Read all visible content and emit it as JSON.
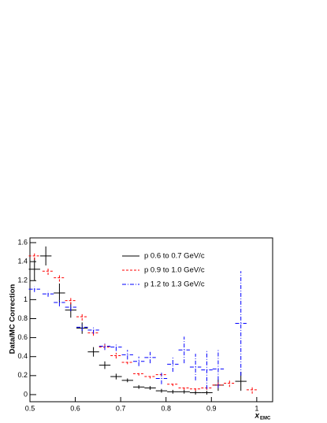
{
  "chart_data": {
    "type": "errorbar",
    "ylabel": "Data/MC Correction",
    "xlabel": "x",
    "xlabel_subscript": "EMC",
    "xlim": [
      0.5,
      1.035
    ],
    "ylim": [
      -0.075,
      1.65
    ],
    "xticks": [
      0.5,
      0.6,
      0.7,
      0.8,
      0.9,
      1
    ],
    "yticks": [
      0,
      0.2,
      0.4,
      0.6,
      0.8,
      1,
      1.2,
      1.4,
      1.6
    ],
    "legend": "upper right",
    "series": [
      {
        "name": "p 0.6 to 0.7 GeV/c",
        "color": "#000000",
        "style": "solid",
        "xerr": 0.0125,
        "x": [
          0.51,
          0.535,
          0.565,
          0.59,
          0.615,
          0.64,
          0.665,
          0.69,
          0.715,
          0.74,
          0.765,
          0.79,
          0.815,
          0.84,
          0.865,
          0.89,
          0.915,
          0.965
        ],
        "values": [
          1.32,
          1.46,
          1.07,
          0.89,
          0.7,
          0.45,
          0.31,
          0.19,
          0.15,
          0.08,
          0.07,
          0.04,
          0.03,
          0.03,
          0.02,
          0.02,
          0.1,
          0.14
        ],
        "errors": [
          0.12,
          0.1,
          0.1,
          0.08,
          0.06,
          0.05,
          0.04,
          0.03,
          0.02,
          0.02,
          0.02,
          0.02,
          0.02,
          0.02,
          0.02,
          0.02,
          0.06,
          0.1
        ]
      },
      {
        "name": "p 0.9 to 1.0 GeV/c",
        "color": "#ff0000",
        "style": "dashed",
        "xerr": 0.0125,
        "x": [
          0.51,
          0.54,
          0.565,
          0.59,
          0.615,
          0.64,
          0.665,
          0.69,
          0.715,
          0.74,
          0.765,
          0.79,
          0.815,
          0.84,
          0.865,
          0.89,
          0.915,
          0.94,
          0.99
        ],
        "values": [
          1.46,
          1.3,
          1.23,
          0.99,
          0.82,
          0.65,
          0.5,
          0.41,
          0.34,
          0.22,
          0.19,
          0.21,
          0.11,
          0.07,
          0.06,
          0.07,
          0.1,
          0.12,
          0.05
        ],
        "errors": [
          0.04,
          0.04,
          0.04,
          0.04,
          0.04,
          0.03,
          0.03,
          0.03,
          0.02,
          0.02,
          0.02,
          0.02,
          0.02,
          0.02,
          0.02,
          0.02,
          0.03,
          0.04,
          0.04
        ]
      },
      {
        "name": "p 1.2 to 1.3 GeV/c",
        "color": "#0000ff",
        "style": "dashdot",
        "xerr": 0.0125,
        "x": [
          0.51,
          0.54,
          0.565,
          0.59,
          0.615,
          0.64,
          0.665,
          0.69,
          0.715,
          0.74,
          0.765,
          0.79,
          0.815,
          0.84,
          0.865,
          0.89,
          0.915,
          0.965
        ],
        "values": [
          1.11,
          1.06,
          0.97,
          0.92,
          0.71,
          0.68,
          0.51,
          0.5,
          0.42,
          0.35,
          0.39,
          0.17,
          0.32,
          0.47,
          0.29,
          0.26,
          0.27,
          0.75
        ],
        "errors": [
          0.03,
          0.03,
          0.04,
          0.04,
          0.04,
          0.04,
          0.04,
          0.04,
          0.05,
          0.05,
          0.06,
          0.06,
          0.08,
          0.14,
          0.14,
          0.2,
          0.2,
          0.55
        ]
      }
    ]
  }
}
